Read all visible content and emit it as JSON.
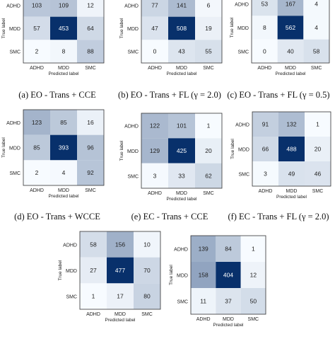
{
  "axis_text": {
    "ylabel": "True label",
    "xlabel": "Predicted label"
  },
  "colors": {
    "low": "#f7fbff",
    "high": "#08306b",
    "dark_text": "#ffffff",
    "light_text": "#222222"
  },
  "chart_data": [
    {
      "type": "heatmap",
      "caption": "(a) EO - Trans + CCE",
      "xlabel": "Predicted label",
      "ylabel": "True label",
      "x_categories": [
        "ADHD",
        "MDD",
        "SMC"
      ],
      "y_categories": [
        "ADHD",
        "MDD",
        "SMC"
      ],
      "values": [
        [
          103,
          109,
          12
        ],
        [
          57,
          453,
          64
        ],
        [
          2,
          8,
          88
        ]
      ]
    },
    {
      "type": "heatmap",
      "caption": "(b) EO - Trans + FL (γ = 2.0)",
      "xlabel": "Predicted label",
      "ylabel": "True label",
      "x_categories": [
        "ADHD",
        "MDD",
        "SMC"
      ],
      "y_categories": [
        "ADHD",
        "MDD",
        "SMC"
      ],
      "values": [
        [
          77,
          141,
          6
        ],
        [
          47,
          508,
          19
        ],
        [
          0,
          43,
          55
        ]
      ]
    },
    {
      "type": "heatmap",
      "caption": "(c) EO - Trans + FL (γ = 0.5)",
      "xlabel": "Predicted label",
      "ylabel": "True label",
      "x_categories": [
        "ADHD",
        "MDD",
        "SMC"
      ],
      "y_categories": [
        "ADHD",
        "MDD",
        "SMC"
      ],
      "values": [
        [
          53,
          167,
          4
        ],
        [
          8,
          562,
          4
        ],
        [
          0,
          40,
          58
        ]
      ]
    },
    {
      "type": "heatmap",
      "caption": "(d) EO - Trans + WCCE",
      "xlabel": "Predicted label",
      "ylabel": "True label",
      "x_categories": [
        "ADHD",
        "MDD",
        "SMC"
      ],
      "y_categories": [
        "ADHD",
        "MDD",
        "SMC"
      ],
      "values": [
        [
          123,
          85,
          16
        ],
        [
          85,
          393,
          96
        ],
        [
          2,
          4,
          92
        ]
      ]
    },
    {
      "type": "heatmap",
      "caption": "(e) EC - Trans + CCE",
      "xlabel": "Predicted label",
      "ylabel": "True label",
      "x_categories": [
        "ADHD",
        "MDD",
        "SMC"
      ],
      "y_categories": [
        "ADHD",
        "MDD",
        "SMC"
      ],
      "values": [
        [
          122,
          101,
          1
        ],
        [
          129,
          425,
          20
        ],
        [
          3,
          33,
          62
        ]
      ]
    },
    {
      "type": "heatmap",
      "caption": "(f) EC - Trans + FL (γ = 2.0)",
      "xlabel": "Predicted label",
      "ylabel": "True label",
      "x_categories": [
        "ADHD",
        "MDD",
        "SMC"
      ],
      "y_categories": [
        "ADHD",
        "MDD",
        "SMC"
      ],
      "values": [
        [
          91,
          132,
          1
        ],
        [
          66,
          488,
          20
        ],
        [
          3,
          49,
          46
        ]
      ]
    },
    {
      "type": "heatmap",
      "caption": "",
      "xlabel": "Predicted label",
      "ylabel": "True label",
      "x_categories": [
        "ADHD",
        "MDD",
        "SMC"
      ],
      "y_categories": [
        "ADHD",
        "MDD",
        "SMC"
      ],
      "values": [
        [
          58,
          156,
          10
        ],
        [
          27,
          477,
          70
        ],
        [
          1,
          17,
          80
        ]
      ]
    },
    {
      "type": "heatmap",
      "caption": "",
      "xlabel": "Predicted label",
      "ylabel": "True label",
      "x_categories": [
        "ADHD",
        "MDD",
        "SMC"
      ],
      "y_categories": [
        "ADHD",
        "MDD",
        "SMC"
      ],
      "values": [
        [
          139,
          84,
          1
        ],
        [
          158,
          404,
          12
        ],
        [
          11,
          37,
          50
        ]
      ]
    }
  ]
}
